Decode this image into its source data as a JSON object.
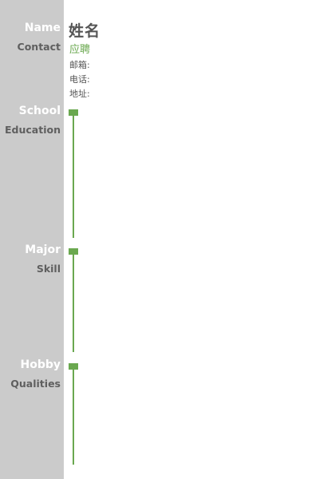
{
  "sidebar": {
    "name_label": "Name",
    "contact_label": "Contact",
    "school_label": "School",
    "education_label": "Education",
    "major_label": "Major",
    "skill_label": "Skill",
    "hobby_label": "Hobby",
    "qualities_label": "Qualities"
  },
  "header": {
    "name": "姓名",
    "position": "应聘",
    "email_label": "邮箱:",
    "phone_label": "电话:",
    "address_label": "地址:"
  },
  "colors": {
    "accent": "#6aa84f",
    "sidebar_bg": "#cbcbcb",
    "text_dark": "#555555"
  }
}
